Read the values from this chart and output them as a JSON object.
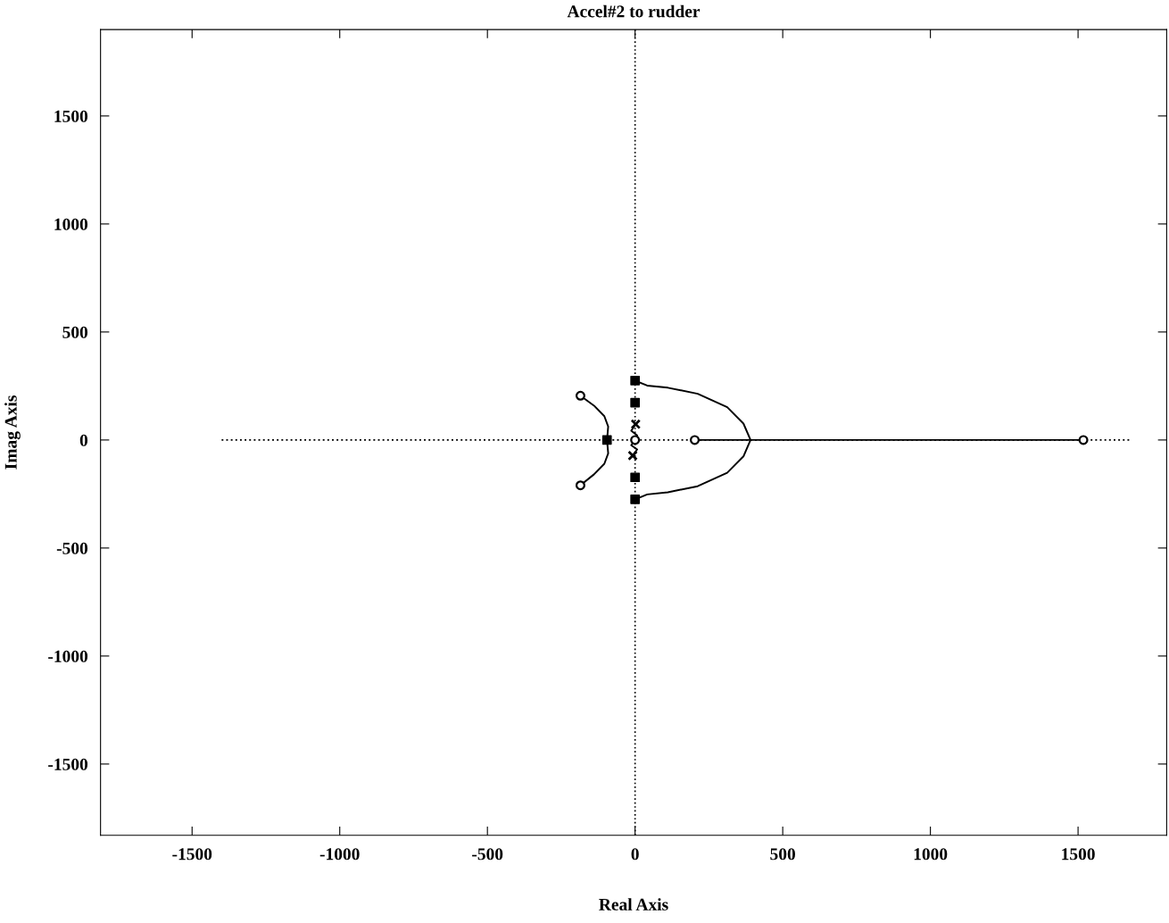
{
  "chart_data": {
    "type": "line",
    "title": "Accel#2 to rudder",
    "xlabel": "Real Axis",
    "ylabel": "Imag Axis",
    "xlim": [
      -1810,
      1800
    ],
    "ylim": [
      -1830,
      1900
    ],
    "xticks": [
      -1500,
      -1000,
      -500,
      0,
      500,
      1000,
      1500
    ],
    "yticks": [
      -1500,
      -1000,
      -500,
      0,
      500,
      1000,
      1500
    ],
    "ref_lines": [
      {
        "axis": "x",
        "value": 0,
        "line_style": "dotted",
        "color": "#000000"
      }
    ],
    "series": [
      {
        "line_style": "dotted",
        "color": "#000000",
        "x": [
          -1400,
          1680
        ],
        "values": [
          0,
          0
        ]
      },
      {
        "line_style": "solid",
        "color": "#000000",
        "x": [
          -95,
          -91,
          -104,
          -139,
          -185
        ],
        "values": [
          0,
          62,
          110,
          159,
          205
        ]
      },
      {
        "line_style": "solid",
        "color": "#000000",
        "x": [
          -95,
          -91,
          -104,
          -139,
          -185
        ],
        "values": [
          0,
          -62,
          -110,
          -159,
          -210
        ]
      },
      {
        "line_style": "solid",
        "color": "#000000",
        "x": [
          0,
          41,
          111,
          212,
          312,
          367,
          391,
          367,
          312,
          212,
          111,
          41,
          0
        ],
        "values": [
          275,
          252,
          242,
          214,
          152,
          76,
          0,
          -76,
          -152,
          -214,
          -242,
          -252,
          -275
        ]
      },
      {
        "line_style": "solid",
        "color": "#000000",
        "x": [
          202,
          1518
        ],
        "values": [
          0,
          0
        ]
      },
      {
        "line_style": "solid",
        "color": "#000000",
        "x": [
          2,
          -13,
          7,
          0,
          -13,
          7,
          -8
        ],
        "values": [
          73,
          43,
          21,
          0,
          -24,
          -44,
          -72
        ]
      },
      {
        "type": "scatter",
        "marker": "circle",
        "color": "#000000",
        "x": [
          -185,
          -185,
          0,
          202,
          1518
        ],
        "values": [
          205,
          -210,
          0,
          0,
          0
        ]
      },
      {
        "type": "scatter",
        "marker": "square",
        "color": "#000000",
        "x": [
          0,
          0,
          0,
          0,
          -95
        ],
        "values": [
          275,
          173,
          -173,
          -275,
          0
        ]
      },
      {
        "type": "scatter",
        "marker": "cross",
        "color": "#000000",
        "x": [
          2,
          -8
        ],
        "values": [
          73,
          -72
        ]
      }
    ]
  }
}
